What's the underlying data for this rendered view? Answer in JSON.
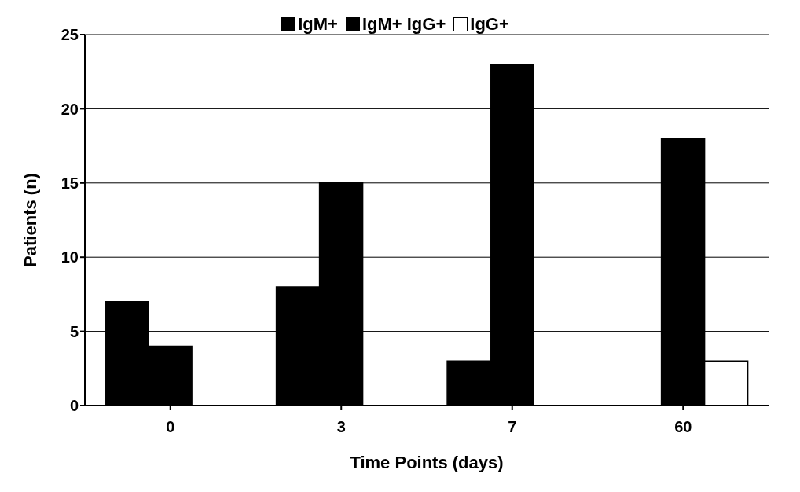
{
  "chart_data": {
    "type": "bar",
    "xlabel": "Time Points (days)",
    "ylabel": "Patients (n)",
    "categories": [
      "0",
      "3",
      "7",
      "60"
    ],
    "series": [
      {
        "name": "IgM+",
        "color": "#000000",
        "values": [
          7,
          8,
          3,
          0
        ]
      },
      {
        "name": "IgM+ IgG+",
        "color": "#000000",
        "values": [
          4,
          15,
          23,
          18
        ]
      },
      {
        "name": "IgG+",
        "color": "#ffffff",
        "values": [
          0,
          0,
          0,
          3
        ]
      }
    ],
    "ylim": [
      0,
      25
    ],
    "yticks": [
      0,
      5,
      10,
      15,
      20,
      25
    ],
    "grid": "y",
    "legend": "top"
  }
}
